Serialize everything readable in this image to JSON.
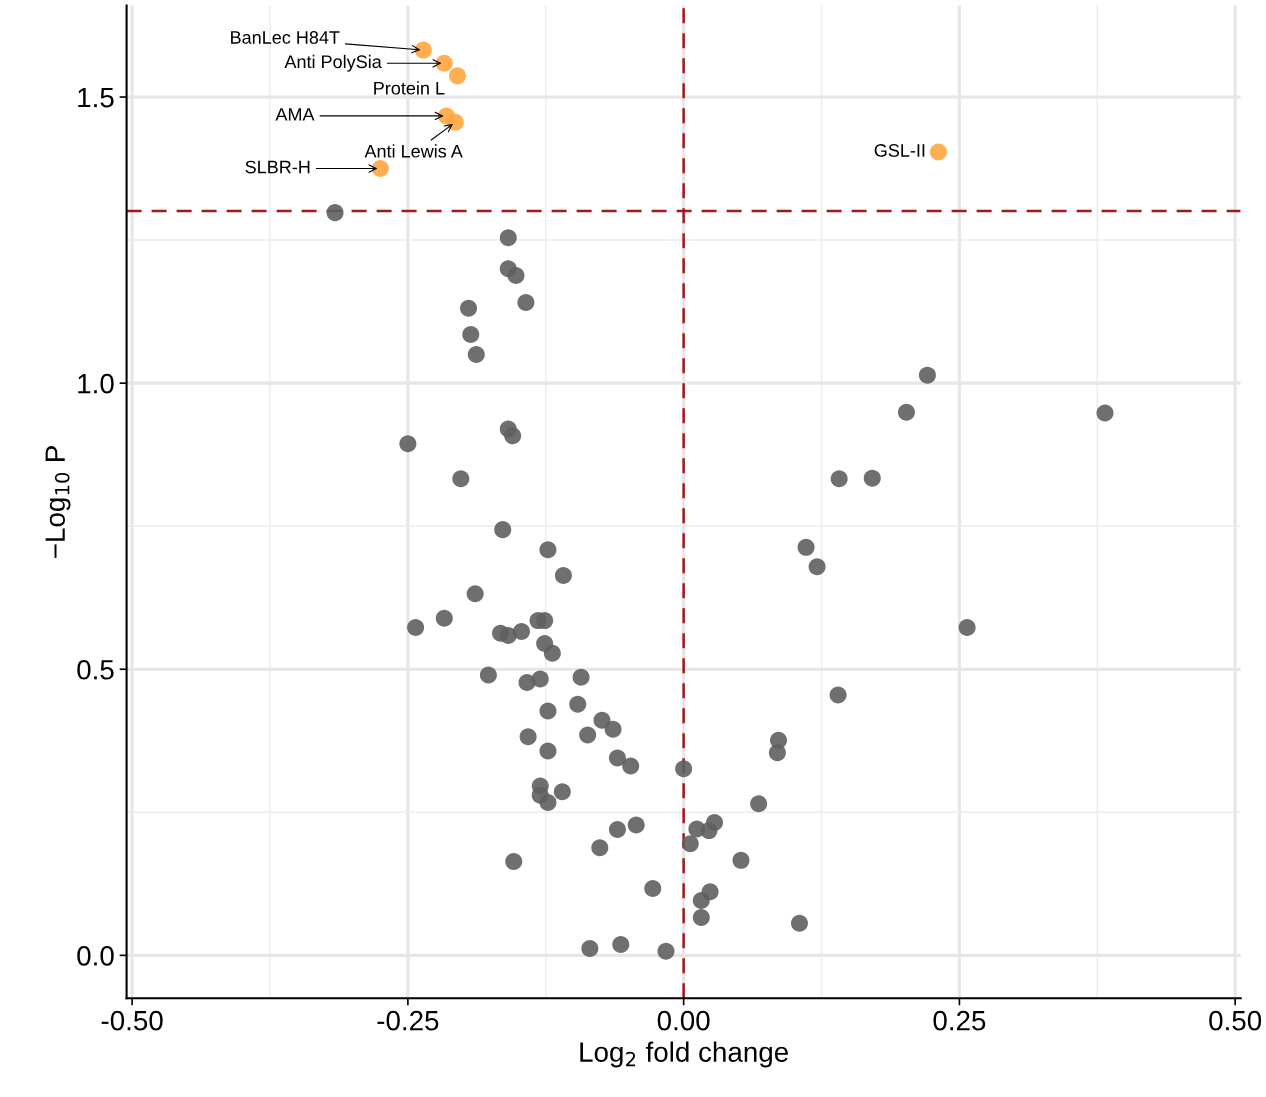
{
  "chart_data": {
    "type": "scatter",
    "xlabel": "Log$_{2}$ fold change",
    "ylabel": "−Log$_{10}$ P",
    "xlim": [
      -0.505,
      0.505
    ],
    "ylim": [
      -0.075,
      1.66
    ],
    "xticks": [
      {
        "value": -0.5,
        "label": "-0.50"
      },
      {
        "value": -0.25,
        "label": "-0.25"
      },
      {
        "value": 0.0,
        "label": "0.00"
      },
      {
        "value": 0.25,
        "label": "0.25"
      },
      {
        "value": 0.5,
        "label": "0.50"
      }
    ],
    "yticks": [
      {
        "value": 0.0,
        "label": "0.0"
      },
      {
        "value": 0.5,
        "label": "0.5"
      },
      {
        "value": 1.0,
        "label": "1.0"
      },
      {
        "value": 1.5,
        "label": "1.5"
      }
    ],
    "grid": true,
    "legend": false,
    "marker": "circle",
    "series": [
      {
        "color": "#5f5f5f",
        "x": [
          -0.316,
          -0.159,
          -0.159,
          -0.152,
          -0.143,
          -0.195,
          -0.193,
          -0.188,
          0.221,
          0.202,
          0.382,
          -0.25,
          -0.159,
          -0.155,
          -0.202,
          0.141,
          0.171,
          -0.164,
          -0.123,
          0.111,
          0.121,
          -0.109,
          -0.189,
          -0.243,
          -0.217,
          -0.132,
          -0.126,
          -0.166,
          -0.159,
          -0.147,
          -0.126,
          -0.119,
          0.257,
          -0.177,
          -0.142,
          -0.13,
          -0.093,
          0.14,
          -0.096,
          -0.123,
          -0.074,
          -0.064,
          -0.141,
          -0.087,
          -0.123,
          0.086,
          0.085,
          -0.06,
          -0.048,
          0.0,
          -0.13,
          -0.13,
          -0.11,
          -0.123,
          0.068,
          -0.043,
          -0.06,
          0.012,
          0.023,
          0.028,
          0.006,
          -0.076,
          -0.154,
          0.052,
          -0.028,
          0.024,
          0.016,
          0.016,
          0.105,
          -0.085,
          -0.057,
          -0.016
        ],
        "values": [
          1.298,
          1.254,
          1.2,
          1.188,
          1.141,
          1.131,
          1.085,
          1.05,
          1.014,
          0.949,
          0.948,
          0.894,
          0.92,
          0.908,
          0.833,
          0.833,
          0.834,
          0.744,
          0.709,
          0.713,
          0.679,
          0.664,
          0.632,
          0.573,
          0.589,
          0.585,
          0.585,
          0.563,
          0.559,
          0.566,
          0.545,
          0.528,
          0.573,
          0.49,
          0.477,
          0.483,
          0.486,
          0.455,
          0.439,
          0.427,
          0.411,
          0.395,
          0.382,
          0.385,
          0.357,
          0.376,
          0.354,
          0.345,
          0.331,
          0.326,
          0.296,
          0.28,
          0.286,
          0.267,
          0.265,
          0.228,
          0.22,
          0.221,
          0.218,
          0.232,
          0.195,
          0.188,
          0.164,
          0.166,
          0.117,
          0.111,
          0.096,
          0.066,
          0.056,
          0.012,
          0.019,
          0.007
        ]
      },
      {
        "color": "#ffa63d",
        "x": [
          -0.236,
          -0.217,
          -0.205,
          -0.215,
          -0.207,
          -0.275,
          0.231
        ],
        "values": [
          1.582,
          1.559,
          1.537,
          1.467,
          1.456,
          1.375,
          1.404
        ]
      }
    ],
    "ref_lines": [
      {
        "axis": "y",
        "value": 1.301,
        "color": "#a11a1a",
        "line_style": "dashed"
      },
      {
        "axis": "x",
        "value": 0.0,
        "color": "#a11a1a",
        "line_style": "dashed"
      }
    ],
    "annotations": [
      {
        "text": "BanLec H84T",
        "x": -0.236,
        "y": 1.582
      },
      {
        "text": "Anti PolySia",
        "x": -0.217,
        "y": 1.559
      },
      {
        "text": "Protein L",
        "x": -0.205,
        "y": 1.537
      },
      {
        "text": "AMA",
        "x": -0.215,
        "y": 1.467
      },
      {
        "text": "Anti Lewis A",
        "x": -0.207,
        "y": 1.456
      },
      {
        "text": "SLBR-H",
        "x": -0.275,
        "y": 1.375
      },
      {
        "text": "GSL-II",
        "x": 0.231,
        "y": 1.404
      }
    ]
  }
}
